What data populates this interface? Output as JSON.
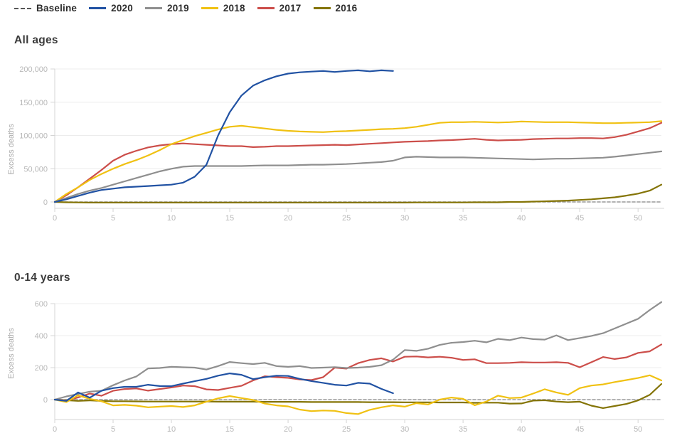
{
  "legend": {
    "items": [
      {
        "label": "Baseline",
        "color": "#565656",
        "style": "dashed"
      },
      {
        "label": "2020",
        "color": "#2152a3",
        "style": "solid"
      },
      {
        "label": "2019",
        "color": "#8f8f8f",
        "style": "solid"
      },
      {
        "label": "2018",
        "color": "#f0c112",
        "style": "solid"
      },
      {
        "label": "2017",
        "color": "#cc4e4a",
        "style": "solid"
      },
      {
        "label": "2016",
        "color": "#847406",
        "style": "solid"
      }
    ]
  },
  "chart_data": [
    {
      "type": "line",
      "title": "All ages",
      "xlabel": "",
      "ylabel": "Excess deaths",
      "xlim": [
        0,
        52
      ],
      "ylim": [
        -10000,
        207000
      ],
      "xticks": [
        0,
        5,
        10,
        15,
        20,
        25,
        30,
        35,
        40,
        45,
        50
      ],
      "yticks": [
        0,
        50000,
        100000,
        150000,
        200000
      ],
      "ytick_labels": [
        "0",
        "50,000",
        "100,000",
        "150,000",
        "200,000"
      ],
      "grid": "horizontal",
      "legend_position": "top-left",
      "series": [
        {
          "name": "Baseline",
          "color": "#999999",
          "dashed": true,
          "x": [
            0,
            52
          ],
          "values": [
            0,
            0
          ]
        },
        {
          "name": "2016",
          "color": "#847406",
          "values": [
            0,
            -500,
            -800,
            -1000,
            -1000,
            -1000,
            -1000,
            -1000,
            -1000,
            -1000,
            -1000,
            -1000,
            -1000,
            -1000,
            -1000,
            -1000,
            -1000,
            -1000,
            -1000,
            -1000,
            -1000,
            -1000,
            -1000,
            -1000,
            -1000,
            -1000,
            -1000,
            -1000,
            -1000,
            -1000,
            -1000,
            -800,
            -800,
            -800,
            -800,
            -800,
            -500,
            -500,
            -500,
            0,
            0,
            500,
            1000,
            1500,
            2000,
            3000,
            4000,
            5500,
            7000,
            9500,
            12500,
            17000,
            26000
          ]
        },
        {
          "name": "2017",
          "color": "#cc4e4a",
          "values": [
            0,
            10000,
            22000,
            35000,
            48000,
            62000,
            71000,
            77000,
            82000,
            85000,
            87000,
            88000,
            87000,
            86000,
            85000,
            84000,
            84000,
            82500,
            83000,
            84000,
            84000,
            84500,
            85000,
            85500,
            86000,
            85500,
            86500,
            87500,
            88500,
            89500,
            90500,
            91000,
            91500,
            92500,
            93000,
            94000,
            95000,
            93500,
            92500,
            93000,
            93500,
            94500,
            95000,
            95500,
            95500,
            96000,
            96000,
            95500,
            97500,
            101000,
            106000,
            111000,
            119000
          ]
        },
        {
          "name": "2018",
          "color": "#f0c112",
          "values": [
            0,
            12000,
            22000,
            33000,
            42000,
            50000,
            57000,
            63000,
            70000,
            78000,
            87000,
            93000,
            99000,
            104000,
            109000,
            113000,
            114500,
            112500,
            110500,
            108500,
            107000,
            106000,
            105500,
            105000,
            106000,
            106500,
            107500,
            108500,
            109500,
            110000,
            111000,
            113000,
            116000,
            119000,
            120000,
            120000,
            120500,
            120000,
            119500,
            120000,
            121000,
            120500,
            120000,
            120000,
            120000,
            119500,
            119000,
            118500,
            118500,
            119000,
            119500,
            120000,
            121500
          ]
        },
        {
          "name": "2019",
          "color": "#8f8f8f",
          "values": [
            0,
            6000,
            12000,
            17000,
            21000,
            26000,
            31000,
            36000,
            41000,
            46000,
            50000,
            53000,
            54000,
            54000,
            54000,
            54000,
            54000,
            54500,
            55000,
            55000,
            55000,
            55500,
            56000,
            56000,
            56500,
            57000,
            58000,
            59000,
            60000,
            62000,
            67000,
            68000,
            67500,
            67000,
            67000,
            67000,
            66500,
            66000,
            65500,
            65000,
            64500,
            64000,
            64500,
            65000,
            65000,
            65500,
            66000,
            66500,
            68000,
            70000,
            72000,
            74000,
            76000
          ]
        },
        {
          "name": "2020",
          "color": "#2152a3",
          "values": [
            0,
            4000,
            9000,
            14000,
            18000,
            20000,
            22000,
            23000,
            24000,
            25000,
            26000,
            29000,
            38000,
            56000,
            100000,
            135000,
            160000,
            175000,
            183000,
            189000,
            193000,
            195000,
            196000,
            197000,
            195500,
            197000,
            198000,
            196500,
            198000,
            197000
          ]
        }
      ]
    },
    {
      "type": "line",
      "title": "0-14 years",
      "xlabel": "",
      "ylabel": "Excess deaths",
      "xlim": [
        0,
        52
      ],
      "ylim": [
        -110,
        650
      ],
      "xticks": [
        0,
        5,
        10,
        15,
        20,
        25,
        30,
        35,
        40,
        45,
        50
      ],
      "yticks": [
        0,
        200,
        400,
        600
      ],
      "ytick_labels": [
        "0",
        "200",
        "400",
        "600"
      ],
      "grid": "horizontal",
      "legend_position": "top-left",
      "series": [
        {
          "name": "Baseline",
          "color": "#999999",
          "dashed": true,
          "x": [
            0,
            52
          ],
          "values": [
            0,
            0
          ]
        },
        {
          "name": "2016",
          "color": "#847406",
          "values": [
            0,
            -4,
            -8,
            -5,
            -8,
            -10,
            -10,
            -11,
            -12,
            -12,
            -12,
            -12,
            -12,
            -12,
            -13,
            -13,
            -13,
            -13,
            -14,
            -14,
            -14,
            -14,
            -15,
            -15,
            -15,
            -15,
            -15,
            -16,
            -16,
            -16,
            -17,
            -17,
            -17,
            -18,
            -18,
            -18,
            -20,
            -19,
            -19,
            -25,
            -24,
            -6,
            -4,
            -12,
            -16,
            -13,
            -38,
            -53,
            -40,
            -27,
            -5,
            30,
            98
          ]
        },
        {
          "name": "2017",
          "color": "#cc4e4a",
          "values": [
            0,
            -6,
            14,
            38,
            24,
            55,
            66,
            70,
            56,
            66,
            76,
            88,
            84,
            64,
            60,
            74,
            86,
            120,
            146,
            140,
            136,
            126,
            122,
            140,
            200,
            194,
            228,
            248,
            258,
            238,
            268,
            270,
            264,
            268,
            262,
            248,
            252,
            228,
            228,
            230,
            234,
            232,
            232,
            234,
            230,
            202,
            234,
            266,
            254,
            264,
            292,
            302,
            345
          ]
        },
        {
          "name": "2018",
          "color": "#f0c112",
          "values": [
            0,
            -15,
            27,
            5,
            -10,
            -36,
            -33,
            -38,
            -48,
            -44,
            -40,
            -46,
            -36,
            -13,
            8,
            22,
            10,
            -2,
            -25,
            -36,
            -42,
            -62,
            -72,
            -68,
            -70,
            -84,
            -90,
            -64,
            -48,
            -36,
            -44,
            -22,
            -30,
            0,
            13,
            5,
            -35,
            -12,
            25,
            10,
            13,
            38,
            65,
            45,
            30,
            72,
            88,
            95,
            110,
            122,
            135,
            152,
            120
          ]
        },
        {
          "name": "2019",
          "color": "#8f8f8f",
          "values": [
            0,
            20,
            35,
            50,
            55,
            90,
            120,
            145,
            195,
            198,
            205,
            202,
            200,
            188,
            210,
            235,
            228,
            222,
            230,
            210,
            205,
            210,
            198,
            200,
            203,
            198,
            200,
            205,
            215,
            250,
            310,
            305,
            318,
            342,
            355,
            360,
            368,
            358,
            380,
            372,
            388,
            378,
            375,
            402,
            372,
            385,
            398,
            415,
            445,
            475,
            505,
            560,
            610
          ]
        },
        {
          "name": "2020",
          "color": "#2152a3",
          "values": [
            0,
            -8,
            45,
            12,
            55,
            72,
            80,
            80,
            93,
            85,
            84,
            100,
            115,
            130,
            150,
            164,
            155,
            128,
            140,
            150,
            148,
            130,
            116,
            105,
            93,
            88,
            105,
            100,
            67,
            40
          ]
        }
      ]
    }
  ]
}
